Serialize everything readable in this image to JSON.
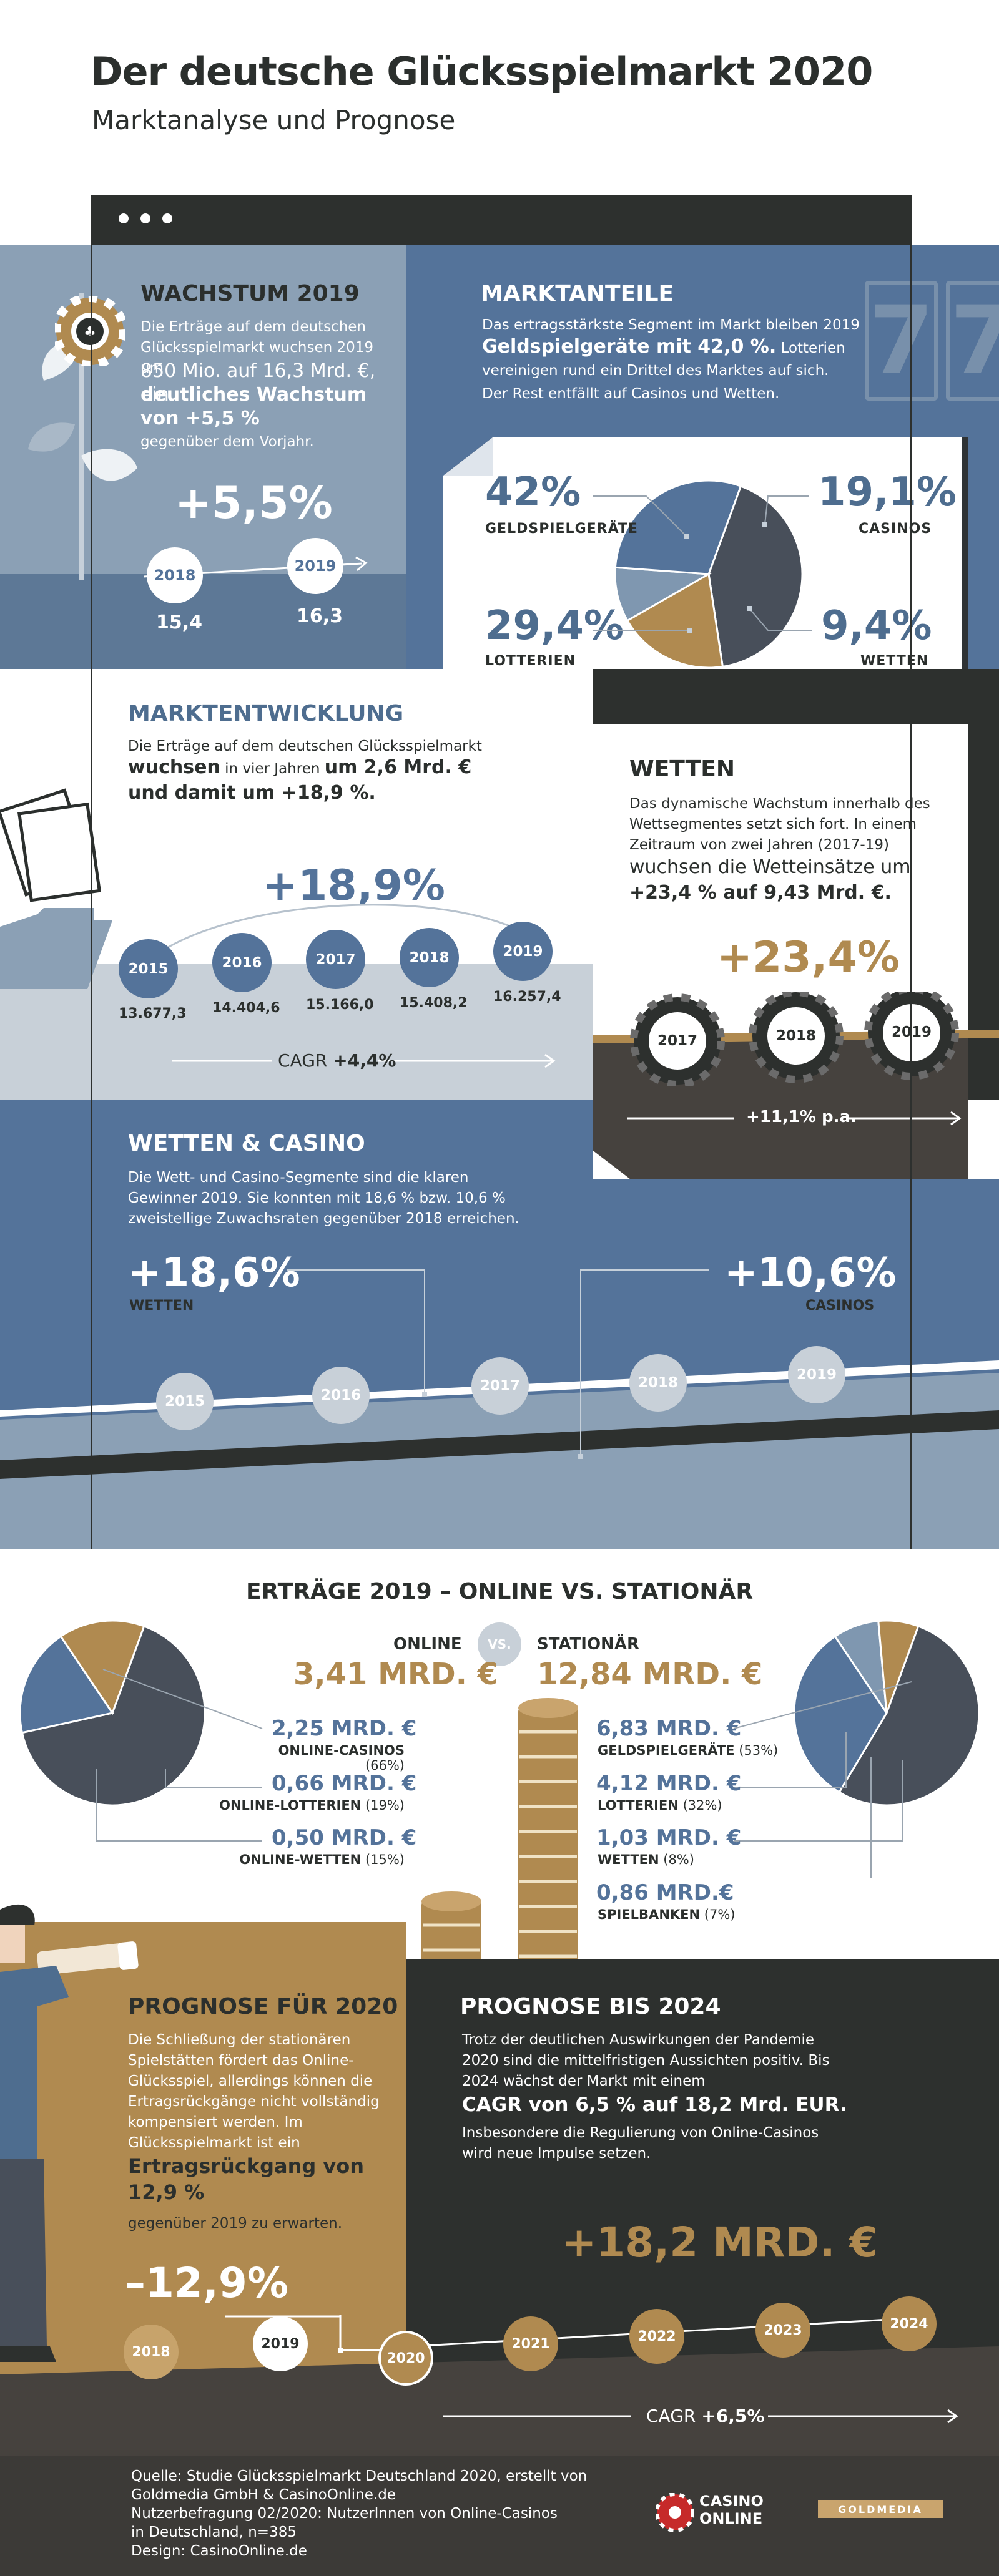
{
  "header": {
    "title": "Der deutsche Glücksspielmarkt 2020",
    "subtitle": "Marktanalyse und Prognose"
  },
  "wachstum": {
    "heading": "WACHSTUM 2019",
    "text1": "Die Erträge auf dem deutschen Glücksspielmarkt wuchsen 2019 um",
    "text2": "850 Mio. auf 16,3 Mrd. €, ein",
    "text3": "deutliches Wachstum von +5,5 %",
    "text4": "gegenüber dem Vorjahr.",
    "big": "+5,5%",
    "years": [
      "2018",
      "2019"
    ],
    "values": [
      "15,4",
      "16,3"
    ]
  },
  "marktanteile": {
    "heading": "MARKTANTEILE",
    "text1": "Das ertragsstärkste Segment im Markt bleiben 2019",
    "text2": "Geldspielgeräte mit 42,0 %.",
    "text3": "Lotterien vereinigen rund ein Drittel des Marktes auf sich.",
    "text4": "Der Rest entfällt auf Casinos und Wetten.",
    "slices": [
      {
        "value": "42%",
        "label": "GELDSPIELGERÄTE",
        "pct": 42.0,
        "color": "#484f5a"
      },
      {
        "value": "19,1%",
        "label": "CASINOS",
        "pct": 19.1,
        "color": "#b08a50"
      },
      {
        "value": "9,4%",
        "label": "WETTEN",
        "pct": 9.4,
        "color": "#7f97b0"
      },
      {
        "value": "29,4%",
        "label": "LOTTERIEN",
        "pct": 29.4,
        "color": "#54739a"
      }
    ]
  },
  "marktentwicklung": {
    "heading": "MARKTENTWICKLUNG",
    "text1": "Die Erträge auf dem deutschen Glücksspielmarkt",
    "text2a": "wuchsen",
    "text2b": "in vier Jahren",
    "text2c": "um 2,6 Mrd. €",
    "text3": "und damit um +18,9 %.",
    "big": "+18,9%",
    "years": [
      "2015",
      "2016",
      "2017",
      "2018",
      "2019"
    ],
    "values": [
      "13.677,3",
      "14.404,6",
      "15.166,0",
      "15.408,2",
      "16.257,4"
    ],
    "cagr_label": "CAGR",
    "cagr_value": "+4,4%"
  },
  "wetten": {
    "heading": "WETTEN",
    "text1": "Das dynamische Wachstum innerhalb des Wettsegmentes setzt sich fort. In einem Zeitraum von zwei Jahren (2017-19)",
    "text2": "wuchsen die Wetteinsätze um",
    "text3": "+23,4 % auf 9,43 Mrd. €.",
    "big": "+23,4%",
    "years": [
      "2017",
      "2018",
      "2019"
    ],
    "pa": "+11,1% p.a."
  },
  "wetten_casino": {
    "heading": "WETTEN & CASINO",
    "text": "Die Wett- und Casino-Segmente sind die klaren Gewinner 2019. Sie konnten mit 18,6 % bzw. 10,6 % zweistellige Zuwachsraten gegenüber 2018 erreichen.",
    "left_big": "+18,6%",
    "left_label": "WETTEN",
    "right_big": "+10,6%",
    "right_label": "CASINOS",
    "years": [
      "2015",
      "2016",
      "2017",
      "2018",
      "2019"
    ]
  },
  "ertraege": {
    "heading": "ERTRÄGE 2019 – ONLINE VS. STATIONÄR",
    "online_label": "ONLINE",
    "vs": "VS.",
    "stationaer_label": "STATIONÄR",
    "online_total": "3,41 MRD. €",
    "stationaer_total": "12,84 MRD. €",
    "online_items": [
      {
        "value": "2,25 MRD. €",
        "label": "ONLINE-CASINOS",
        "pct": "(66%)"
      },
      {
        "value": "0,66 MRD. €",
        "label": "ONLINE-LOTTERIEN",
        "pct": "(19%)"
      },
      {
        "value": "0,50 MRD. €",
        "label": "ONLINE-WETTEN",
        "pct": "(15%)"
      }
    ],
    "stationaer_items": [
      {
        "value": "6,83 MRD. €",
        "label": "GELDSPIELGERÄTE",
        "pct": "(53%)"
      },
      {
        "value": "4,12 MRD. €",
        "label": "LOTTERIEN",
        "pct": "(32%)"
      },
      {
        "value": "1,03 MRD. €",
        "label": "WETTEN",
        "pct": "(8%)"
      },
      {
        "value": "0,86 MRD.€",
        "label": "SPIELBANKEN",
        "pct": "(7%)"
      }
    ]
  },
  "prognose2020": {
    "heading": "PROGNOSE FÜR 2020",
    "text1": "Die Schließung der stationären Spielstätten fördert das Online-Glücksspiel, allerdings können die Ertragsrückgänge nicht vollständig kompensiert werden. Im Glücksspielmarkt ist ein",
    "text2": "Ertragsrückgang von 12,9 %",
    "text3": "gegenüber 2019 zu erwarten.",
    "big": "–12,9%"
  },
  "prognose2024": {
    "heading": "PROGNOSE BIS 2024",
    "text1": "Trotz der deutlichen Auswirkungen der Pandemie 2020 sind die mittelfristigen Aussichten positiv. Bis 2024 wächst der Markt mit einem",
    "text2": "CAGR von 6,5 % auf 18,2 Mrd. EUR.",
    "text3": "Insbesondere die Regulierung von Online-Casinos wird neue Impulse setzen.",
    "big": "+18,2 MRD. €",
    "years": [
      "2018",
      "2019",
      "2020",
      "2021",
      "2022",
      "2023",
      "2024"
    ],
    "cagr_label": "CAGR",
    "cagr_value": "+6,5%"
  },
  "footer": {
    "line1": "Quelle: Studie Glücksspielmarkt Deutschland 2020, erstellt von",
    "line2": "Goldmedia GmbH & CasinoOnline.de",
    "line3": "Nutzerbefragung 02/2020: NutzerInnen von Online-Casinos",
    "line4": "in Deutschland, n=385",
    "line5": "Design: CasinoOnline.de",
    "logo1a": "CASINO",
    "logo1b": "ONLINE",
    "logo2": "GOLDMEDIA"
  }
}
